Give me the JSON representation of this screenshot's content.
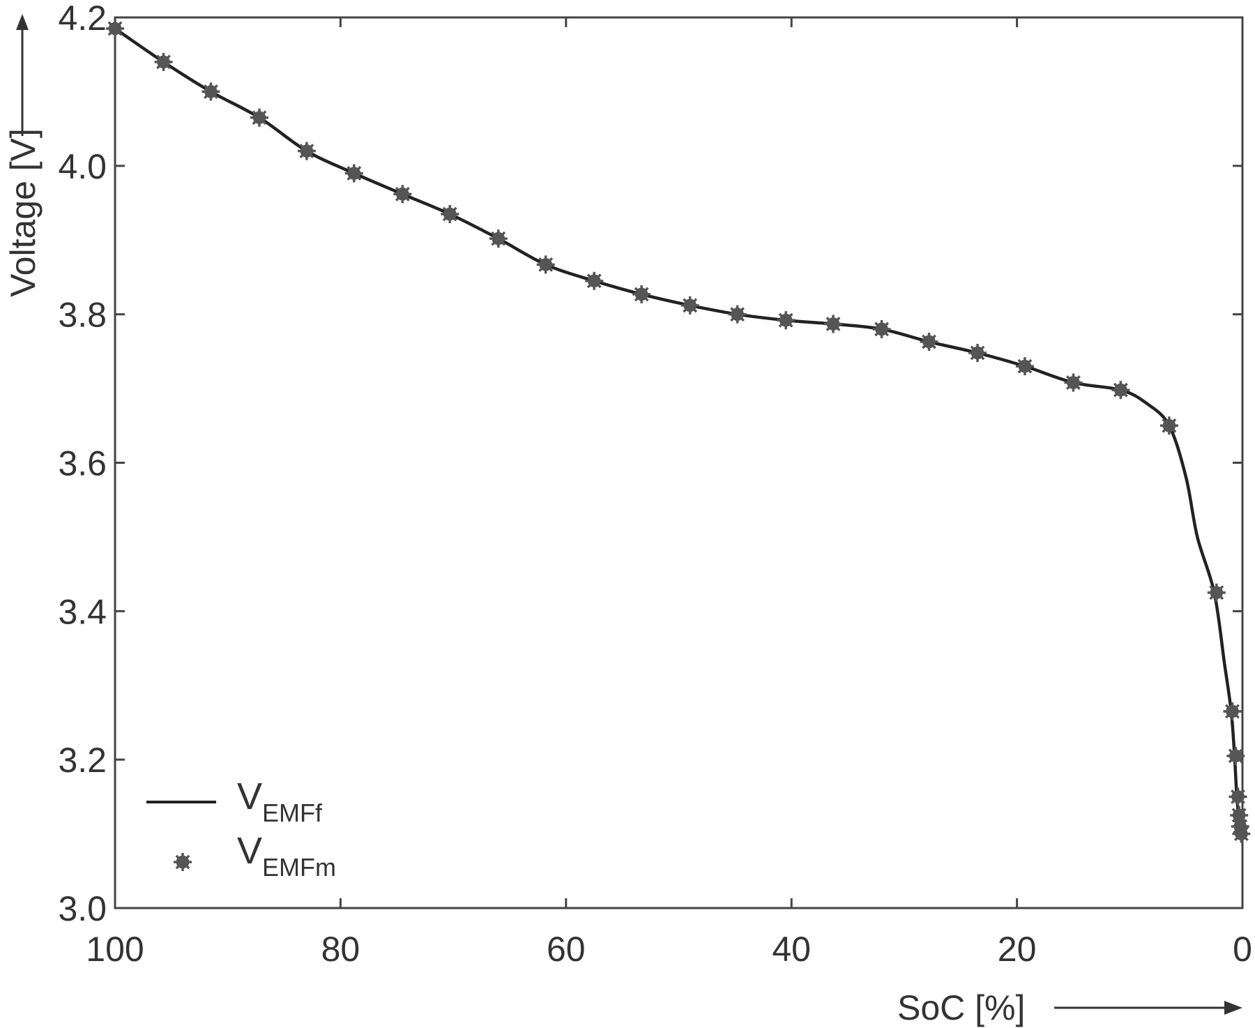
{
  "chart_data": {
    "type": "line",
    "xlabel": "SoC [%]",
    "ylabel": "Voltage [V]",
    "xlim": [
      100,
      0
    ],
    "ylim": [
      3.0,
      4.2
    ],
    "x_reversed": true,
    "x_ticks": [
      100,
      80,
      60,
      40,
      20,
      0
    ],
    "y_ticks": [
      3.0,
      3.2,
      3.4,
      3.6,
      3.8,
      4.0,
      4.2
    ],
    "y_tick_labels": [
      "3.0",
      "3.2",
      "3.4",
      "3.6",
      "3.8",
      "4.0",
      "4.2"
    ],
    "grid": false,
    "legend_position": "bottom-left",
    "series": [
      {
        "name": "V",
        "name_subscript": "EMFf",
        "style": "solid line",
        "color": "#222222",
        "x": [
          100,
          95.7,
          91.5,
          87.2,
          83,
          78.8,
          74.5,
          70.3,
          66,
          61.8,
          57.5,
          53.3,
          49,
          44.8,
          40.5,
          36.3,
          32,
          27.8,
          23.5,
          19.3,
          15,
          10.8,
          8.5,
          6.5,
          5,
          4,
          2.5,
          1.6,
          1.0,
          0.7,
          0.5,
          0.3,
          0.2,
          0.1
        ],
        "y": [
          4.185,
          4.14,
          4.1,
          4.065,
          4.02,
          3.99,
          3.962,
          3.935,
          3.902,
          3.867,
          3.845,
          3.827,
          3.812,
          3.8,
          3.792,
          3.787,
          3.78,
          3.763,
          3.748,
          3.73,
          3.708,
          3.698,
          3.68,
          3.65,
          3.58,
          3.5,
          3.425,
          3.33,
          3.265,
          3.205,
          3.15,
          3.12,
          3.11,
          3.1
        ]
      },
      {
        "name": "V",
        "name_subscript": "EMFm",
        "style": "star markers",
        "color": "#555555",
        "x": [
          100,
          95.7,
          91.5,
          87.2,
          83,
          78.8,
          74.5,
          70.3,
          66,
          61.8,
          57.5,
          53.3,
          49,
          44.8,
          40.5,
          36.3,
          32,
          27.8,
          23.5,
          19.3,
          15,
          10.8,
          6.5,
          2.3,
          0.9,
          0.6,
          0.4,
          0.3,
          0.2,
          0.1
        ],
        "y": [
          4.185,
          4.14,
          4.1,
          4.065,
          4.02,
          3.99,
          3.962,
          3.935,
          3.902,
          3.867,
          3.845,
          3.827,
          3.812,
          3.8,
          3.792,
          3.787,
          3.78,
          3.763,
          3.748,
          3.73,
          3.708,
          3.698,
          3.65,
          3.425,
          3.265,
          3.205,
          3.15,
          3.125,
          3.11,
          3.1
        ]
      }
    ]
  }
}
